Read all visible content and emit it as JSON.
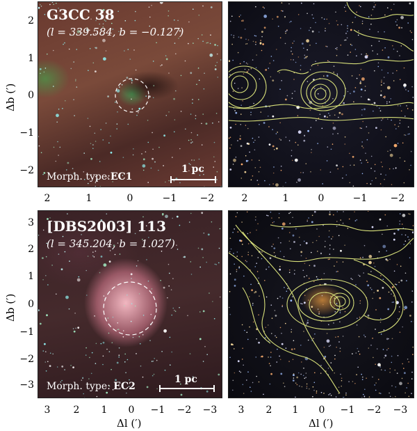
{
  "top_left": {
    "name": "G3CC 38",
    "coords": "(l = 339.584, b = −0.127)",
    "morph_prefix": "Morph. type:",
    "morph_value": "EC1",
    "scale": "1 pc"
  },
  "bottom_left": {
    "name": "[DBS2003] 113",
    "coords": "(l = 345.204, b =  1.027)",
    "morph_prefix": "Morph. type: ",
    "morph_value": "EC2",
    "scale": "1 pc"
  },
  "axes": {
    "top_x_ticks": [
      "2",
      "1",
      "0",
      "−1",
      "−2"
    ],
    "top_y_ticks": [
      "2",
      "1",
      "0",
      "−1",
      "−2"
    ],
    "bottom_x_ticks": [
      "3",
      "2",
      "1",
      "0",
      "−1",
      "−2",
      "−3"
    ],
    "bottom_y_ticks": [
      "3",
      "2",
      "1",
      "0",
      "−1",
      "−2",
      "−3"
    ],
    "ylabel": "Δb (′)",
    "xlabel": "Δl (′)"
  },
  "colors": {
    "contour": "#d8e07a",
    "aperture": "#ffffff"
  }
}
